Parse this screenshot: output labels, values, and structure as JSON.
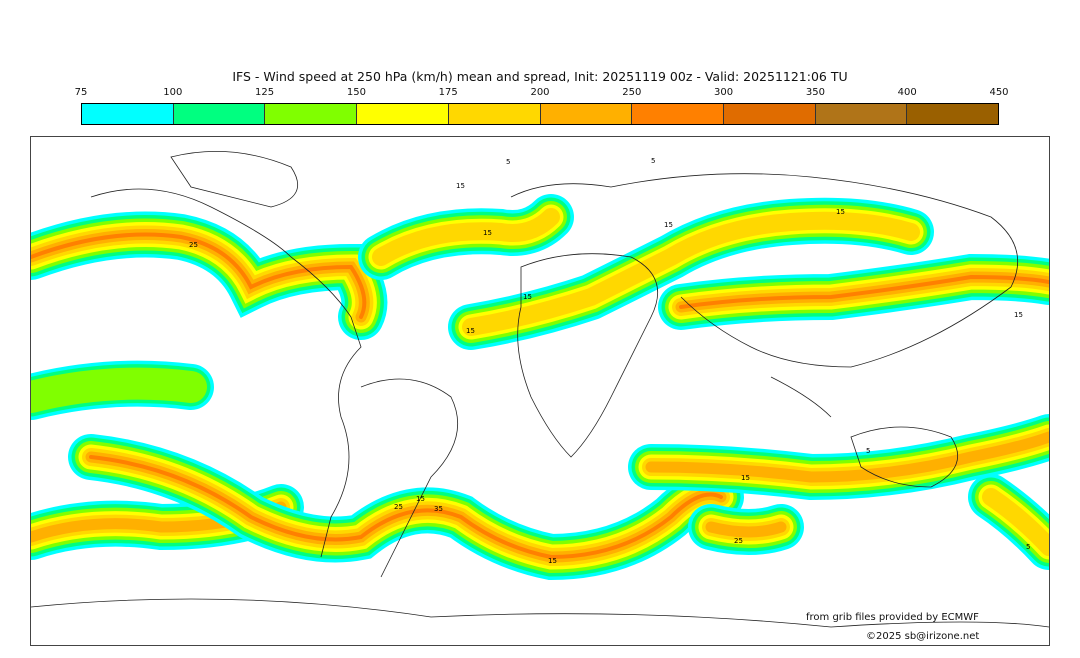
{
  "title": "IFS - Wind speed at 250 hPa (km/h) mean and spread, Init: 20251119 00z - Valid: 20251121:06 TU",
  "colorbar": {
    "ticks": [
      "75",
      "100",
      "125",
      "150",
      "175",
      "200",
      "250",
      "300",
      "350",
      "400",
      "450"
    ],
    "colors": [
      "#00ffff",
      "#00ff80",
      "#80ff00",
      "#ffff00",
      "#ffd800",
      "#ffb000",
      "#ff8000",
      "#e06c00",
      "#b07418",
      "#9a6000"
    ]
  },
  "contour_labels": [
    "15",
    "15",
    "15",
    "15",
    "15",
    "15",
    "25",
    "15",
    "35",
    "25",
    "15",
    "25",
    "15",
    "15",
    "5",
    "5",
    "5",
    "5"
  ],
  "credits": {
    "source": "from grib files provided by ECMWF",
    "copyright": "©2025 sb@irizone.net"
  }
}
